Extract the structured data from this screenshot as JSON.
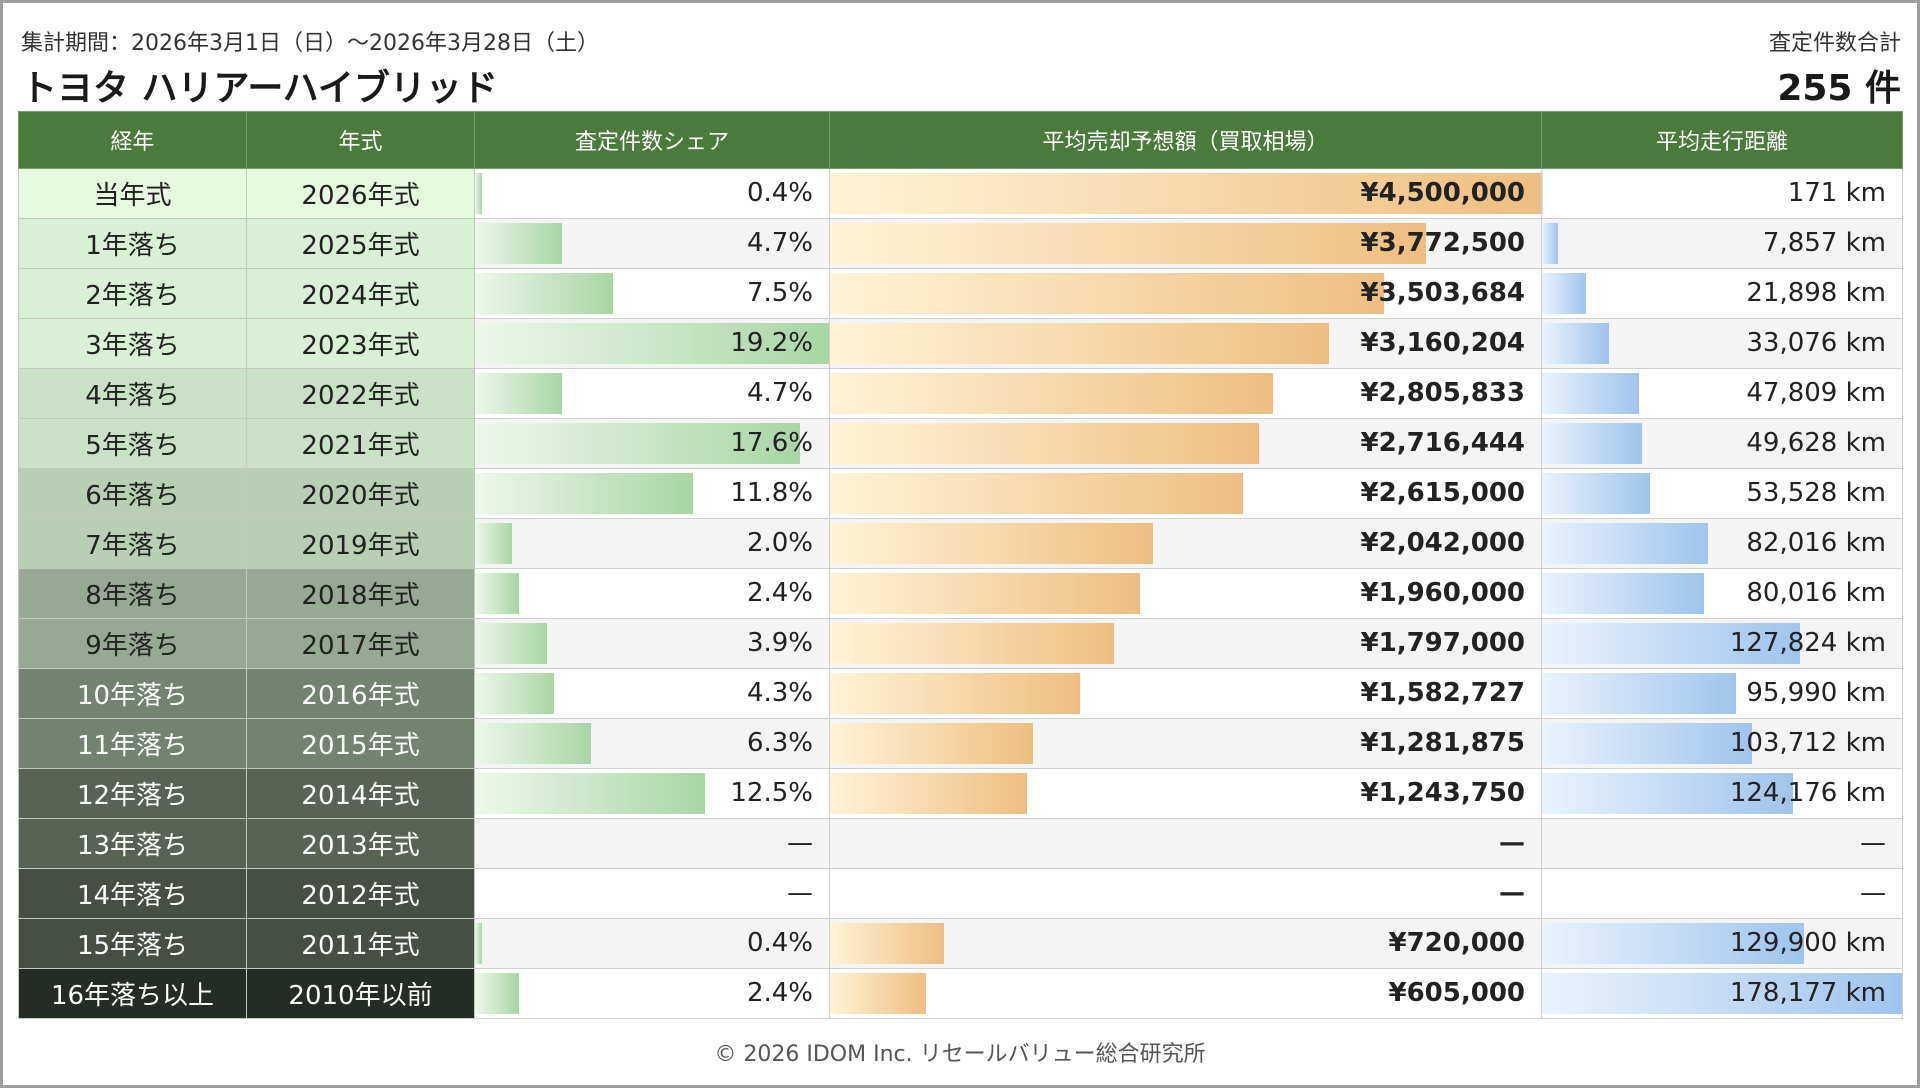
{
  "header": {
    "period": "集計期間：2026年3月1日（日）～2026年3月28日（土）",
    "title": "トヨタ ハリアーハイブリッド",
    "total_label": "査定件数合計",
    "total_value": "255 件"
  },
  "columns": [
    "経年",
    "年式",
    "査定件数シェア",
    "平均売却予想額（買取相場）",
    "平均走行距離"
  ],
  "colors": {
    "header_bg": "#4a7a3c",
    "age_shades": [
      "#e5fbde",
      "#d8f0d3",
      "#d8f0d3",
      "#d8f0d3",
      "#c9e2c6",
      "#c9e2c6",
      "#b8cfb4",
      "#b8cfb4",
      "#97a894",
      "#97a894",
      "#738271",
      "#738271",
      "#596355",
      "#596355",
      "#474f45",
      "#474f45",
      "#252b25"
    ],
    "age_text": [
      "#222",
      "#222",
      "#222",
      "#222",
      "#222",
      "#222",
      "#222",
      "#222",
      "#222",
      "#222",
      "#ffffff",
      "#ffffff",
      "#ffffff",
      "#ffffff",
      "#ffffff",
      "#ffffff",
      "#ffffff"
    ]
  },
  "rows": [
    {
      "age": "当年式",
      "year": "2026年式",
      "share": "0.4%",
      "share_pct": 0.4,
      "price": "¥4,500,000",
      "price_val": 4500000,
      "dist": "171 km",
      "dist_val": 171
    },
    {
      "age": "1年落ち",
      "year": "2025年式",
      "share": "4.7%",
      "share_pct": 4.7,
      "price": "¥3,772,500",
      "price_val": 3772500,
      "dist": "7,857 km",
      "dist_val": 7857
    },
    {
      "age": "2年落ち",
      "year": "2024年式",
      "share": "7.5%",
      "share_pct": 7.5,
      "price": "¥3,503,684",
      "price_val": 3503684,
      "dist": "21,898 km",
      "dist_val": 21898
    },
    {
      "age": "3年落ち",
      "year": "2023年式",
      "share": "19.2%",
      "share_pct": 19.2,
      "price": "¥3,160,204",
      "price_val": 3160204,
      "dist": "33,076 km",
      "dist_val": 33076
    },
    {
      "age": "4年落ち",
      "year": "2022年式",
      "share": "4.7%",
      "share_pct": 4.7,
      "price": "¥2,805,833",
      "price_val": 2805833,
      "dist": "47,809 km",
      "dist_val": 47809
    },
    {
      "age": "5年落ち",
      "year": "2021年式",
      "share": "17.6%",
      "share_pct": 17.6,
      "price": "¥2,716,444",
      "price_val": 2716444,
      "dist": "49,628 km",
      "dist_val": 49628
    },
    {
      "age": "6年落ち",
      "year": "2020年式",
      "share": "11.8%",
      "share_pct": 11.8,
      "price": "¥2,615,000",
      "price_val": 2615000,
      "dist": "53,528 km",
      "dist_val": 53528
    },
    {
      "age": "7年落ち",
      "year": "2019年式",
      "share": "2.0%",
      "share_pct": 2.0,
      "price": "¥2,042,000",
      "price_val": 2042000,
      "dist": "82,016 km",
      "dist_val": 82016
    },
    {
      "age": "8年落ち",
      "year": "2018年式",
      "share": "2.4%",
      "share_pct": 2.4,
      "price": "¥1,960,000",
      "price_val": 1960000,
      "dist": "80,016 km",
      "dist_val": 80016
    },
    {
      "age": "9年落ち",
      "year": "2017年式",
      "share": "3.9%",
      "share_pct": 3.9,
      "price": "¥1,797,000",
      "price_val": 1797000,
      "dist": "127,824 km",
      "dist_val": 127824
    },
    {
      "age": "10年落ち",
      "year": "2016年式",
      "share": "4.3%",
      "share_pct": 4.3,
      "price": "¥1,582,727",
      "price_val": 1582727,
      "dist": "95,990 km",
      "dist_val": 95990
    },
    {
      "age": "11年落ち",
      "year": "2015年式",
      "share": "6.3%",
      "share_pct": 6.3,
      "price": "¥1,281,875",
      "price_val": 1281875,
      "dist": "103,712 km",
      "dist_val": 103712
    },
    {
      "age": "12年落ち",
      "year": "2014年式",
      "share": "12.5%",
      "share_pct": 12.5,
      "price": "¥1,243,750",
      "price_val": 1243750,
      "dist": "124,176 km",
      "dist_val": 124176
    },
    {
      "age": "13年落ち",
      "year": "2013年式",
      "share": "—",
      "share_pct": 0,
      "price": "—",
      "price_val": 0,
      "dist": "—",
      "dist_val": 0
    },
    {
      "age": "14年落ち",
      "year": "2012年式",
      "share": "—",
      "share_pct": 0,
      "price": "—",
      "price_val": 0,
      "dist": "—",
      "dist_val": 0
    },
    {
      "age": "15年落ち",
      "year": "2011年式",
      "share": "0.4%",
      "share_pct": 0.4,
      "price": "¥720,000",
      "price_val": 720000,
      "dist": "129,900 km",
      "dist_val": 129900
    },
    {
      "age": "16年落ち以上",
      "year": "2010年以前",
      "share": "2.4%",
      "share_pct": 2.4,
      "price": "¥605,000",
      "price_val": 605000,
      "dist": "178,177 km",
      "dist_val": 178177
    }
  ],
  "footer": "© 2026 IDOM Inc. リセールバリュー総合研究所"
}
